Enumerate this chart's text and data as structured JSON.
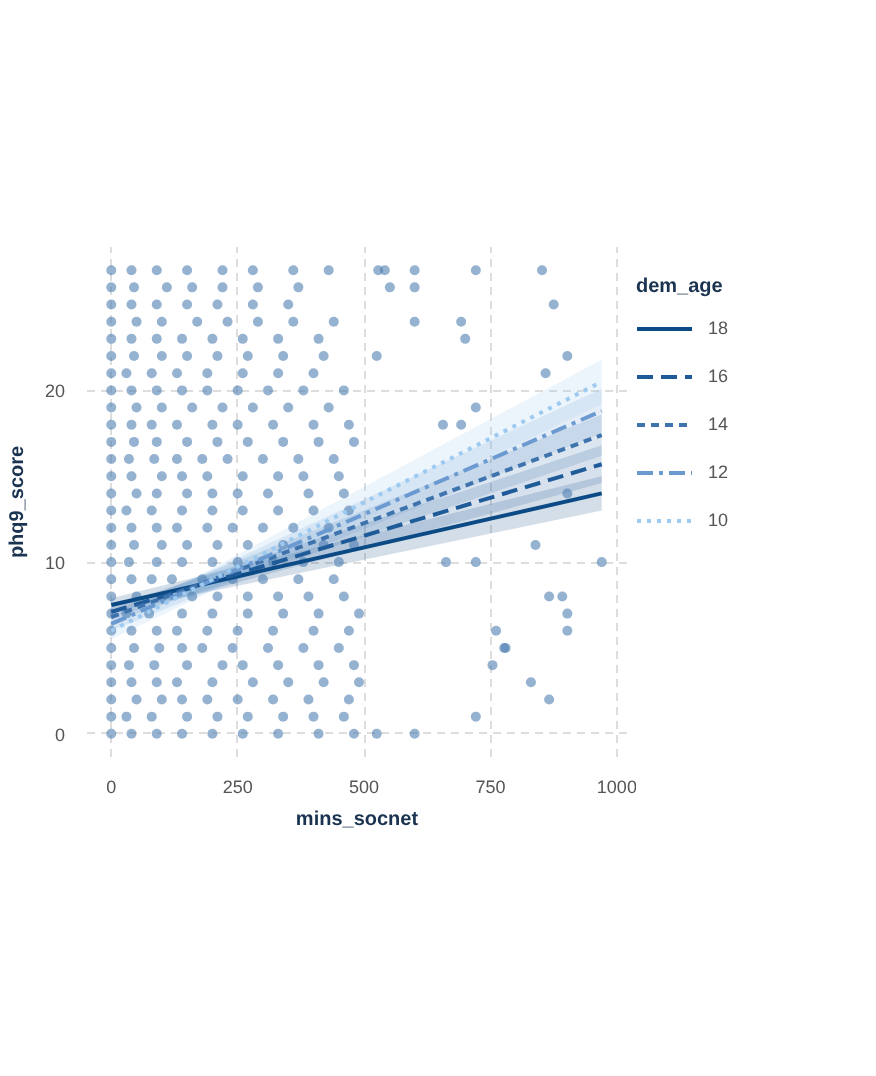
{
  "chart_data": {
    "type": "scatter",
    "xlabel": "mins_socnet",
    "ylabel": "phq9_score",
    "legend_title": "dem_age",
    "legend": "right",
    "grid": true,
    "xlim": [
      -48,
      1020
    ],
    "ylim": [
      -1.35,
      28.35
    ],
    "xticks": [
      0,
      250,
      500,
      750,
      1000
    ],
    "yticks": [
      0,
      10,
      20
    ],
    "series": [
      {
        "color": "#4f7fb3",
        "marker": "circle",
        "x": [
          0,
          40,
          90,
          140,
          200,
          260,
          330,
          410,
          480,
          525,
          600,
          0,
          30,
          80,
          150,
          210,
          270,
          340,
          400,
          460,
          721,
          0,
          50,
          100,
          140,
          190,
          250,
          320,
          390,
          470,
          866,
          0,
          40,
          90,
          130,
          200,
          280,
          350,
          420,
          490,
          830,
          0,
          35,
          85,
          150,
          220,
          260,
          330,
          410,
          480,
          754,
          0,
          45,
          95,
          140,
          180,
          240,
          310,
          380,
          450,
          777,
          780,
          0,
          40,
          90,
          130,
          190,
          250,
          320,
          400,
          470,
          761,
          902,
          0,
          30,
          75,
          140,
          200,
          270,
          340,
          410,
          490,
          902,
          0,
          50,
          100,
          160,
          210,
          270,
          330,
          390,
          460,
          866,
          892,
          0,
          40,
          80,
          120,
          180,
          240,
          300,
          370,
          440,
          0,
          35,
          90,
          140,
          200,
          250,
          320,
          380,
          450,
          662,
          721,
          970,
          0,
          45,
          100,
          150,
          210,
          270,
          340,
          420,
          480,
          839,
          0,
          40,
          90,
          130,
          190,
          240,
          300,
          360,
          430,
          0,
          30,
          80,
          140,
          200,
          260,
          330,
          400,
          470,
          0,
          50,
          90,
          150,
          200,
          250,
          310,
          390,
          460,
          902,
          0,
          40,
          100,
          140,
          190,
          260,
          330,
          380,
          450,
          0,
          35,
          85,
          130,
          180,
          230,
          300,
          370,
          440,
          0,
          45,
          90,
          150,
          210,
          270,
          340,
          410,
          480,
          0,
          40,
          80,
          130,
          200,
          250,
          320,
          400,
          470,
          656,
          692,
          0,
          50,
          100,
          160,
          220,
          280,
          350,
          430,
          721,
          0,
          40,
          90,
          140,
          190,
          250,
          310,
          380,
          460,
          0,
          30,
          80,
          130,
          190,
          260,
          330,
          400,
          859,
          0,
          45,
          100,
          150,
          210,
          270,
          340,
          420,
          525,
          902,
          0,
          40,
          90,
          140,
          200,
          260,
          330,
          410,
          700,
          0,
          50,
          100,
          170,
          230,
          290,
          360,
          440,
          600,
          692,
          0,
          40,
          90,
          150,
          210,
          280,
          350,
          875,
          0,
          45,
          110,
          160,
          220,
          290,
          370,
          551,
          600,
          0,
          40,
          90,
          150,
          220,
          280,
          360,
          430,
          528,
          541,
          600,
          721,
          852
        ],
        "values": [
          0,
          0,
          0,
          0,
          0,
          0,
          0,
          0,
          0,
          0,
          0,
          1,
          1,
          1,
          1,
          1,
          1,
          1,
          1,
          1,
          1,
          2,
          2,
          2,
          2,
          2,
          2,
          2,
          2,
          2,
          2,
          3,
          3,
          3,
          3,
          3,
          3,
          3,
          3,
          3,
          3,
          4,
          4,
          4,
          4,
          4,
          4,
          4,
          4,
          4,
          4,
          5,
          5,
          5,
          5,
          5,
          5,
          5,
          5,
          5,
          5,
          5,
          6,
          6,
          6,
          6,
          6,
          6,
          6,
          6,
          6,
          6,
          6,
          7,
          7,
          7,
          7,
          7,
          7,
          7,
          7,
          7,
          7,
          8,
          8,
          8,
          8,
          8,
          8,
          8,
          8,
          8,
          8,
          8,
          9,
          9,
          9,
          9,
          9,
          9,
          9,
          9,
          9,
          10,
          10,
          10,
          10,
          10,
          10,
          10,
          10,
          10,
          10,
          10,
          10,
          11,
          11,
          11,
          11,
          11,
          11,
          11,
          11,
          11,
          11,
          12,
          12,
          12,
          12,
          12,
          12,
          12,
          12,
          12,
          13,
          13,
          13,
          13,
          13,
          13,
          13,
          13,
          13,
          14,
          14,
          14,
          14,
          14,
          14,
          14,
          14,
          14,
          14,
          15,
          15,
          15,
          15,
          15,
          15,
          15,
          15,
          15,
          16,
          16,
          16,
          16,
          16,
          16,
          16,
          16,
          16,
          17,
          17,
          17,
          17,
          17,
          17,
          17,
          17,
          17,
          18,
          18,
          18,
          18,
          18,
          18,
          18,
          18,
          18,
          18,
          18,
          19,
          19,
          19,
          19,
          19,
          19,
          19,
          19,
          19,
          20,
          20,
          20,
          20,
          20,
          20,
          20,
          20,
          20,
          21,
          21,
          21,
          21,
          21,
          21,
          21,
          21,
          21,
          22,
          22,
          22,
          22,
          22,
          22,
          22,
          22,
          22,
          22,
          23,
          23,
          23,
          23,
          23,
          23,
          23,
          23,
          23,
          24,
          24,
          24,
          24,
          24,
          24,
          24,
          24,
          24,
          24,
          25,
          25,
          25,
          25,
          25,
          25,
          25,
          25,
          26,
          26,
          26,
          26,
          26,
          26,
          26,
          26,
          26,
          27,
          27,
          27,
          27,
          27,
          27,
          27,
          27,
          27,
          27,
          27,
          27,
          27
        ]
      },
      {
        "type": "line",
        "name": "18",
        "color": "#0b4a85",
        "line_style": "solid",
        "x": [
          0,
          970
        ],
        "values": [
          7.5,
          14.0
        ],
        "lower": [
          7.1,
          13.0
        ],
        "upper": [
          7.9,
          15.0
        ]
      },
      {
        "type": "line",
        "name": "16",
        "color": "#1f5a99",
        "line_style": "longdash",
        "x": [
          0,
          970
        ],
        "values": [
          7.1,
          15.7
        ],
        "lower": [
          6.8,
          14.6
        ],
        "upper": [
          7.4,
          16.8
        ]
      },
      {
        "type": "line",
        "name": "14",
        "color": "#3f73ad",
        "line_style": "dashed",
        "x": [
          0,
          970
        ],
        "values": [
          6.8,
          17.4
        ],
        "lower": [
          6.5,
          16.2
        ],
        "upper": [
          7.1,
          18.6
        ]
      },
      {
        "type": "line",
        "name": "12",
        "color": "#6b9ad0",
        "line_style": "dashdot",
        "x": [
          0,
          970
        ],
        "values": [
          6.4,
          18.8
        ],
        "lower": [
          6.0,
          17.5
        ],
        "upper": [
          6.8,
          20.1
        ]
      },
      {
        "type": "line",
        "name": "10",
        "color": "#9ccaf0",
        "line_style": "dotted",
        "x": [
          0,
          970
        ],
        "values": [
          6.0,
          20.5
        ],
        "lower": [
          5.5,
          19.2
        ],
        "upper": [
          6.5,
          21.8
        ]
      }
    ]
  }
}
